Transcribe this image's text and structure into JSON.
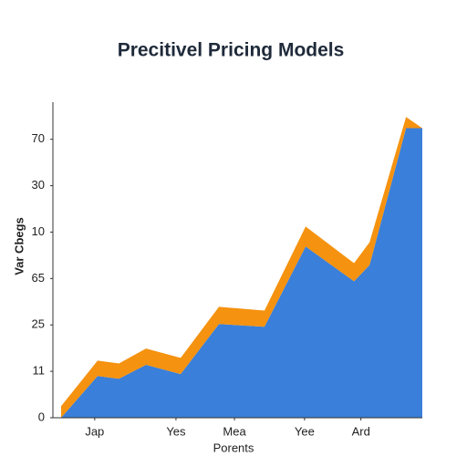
{
  "chart_data": {
    "type": "area",
    "stacked": true,
    "title": "Precitivel Pricing Models",
    "ylabel": "Var Cbegs",
    "xlabel": "Porents",
    "x": [
      0,
      10.1,
      16.0,
      23.5,
      33.1,
      43.7,
      56.3,
      67.7,
      81.1,
      85.4,
      95.5,
      100
    ],
    "series": [
      {
        "color": "#3a7fd9",
        "values": [
          0,
          0.9,
          0.84,
          1.14,
          0.94,
          2.02,
          1.96,
          3.69,
          2.94,
          3.29,
          6.24,
          6.24
        ]
      },
      {
        "color": "#f5920f",
        "values": [
          0.25,
          0.33,
          0.33,
          0.35,
          0.35,
          0.37,
          0.35,
          0.43,
          0.39,
          0.49,
          0.24,
          0
        ]
      }
    ],
    "xlim": [
      0,
      100
    ],
    "xticks": [
      {
        "value": 9.3,
        "label": "Jap"
      },
      {
        "value": 31.8,
        "label": "Yes"
      },
      {
        "value": 48,
        "label": "Mea"
      },
      {
        "value": 67.4,
        "label": "Yee"
      },
      {
        "value": 83,
        "label": "Ard"
      }
    ],
    "ylim": [
      0,
      6.8
    ],
    "yticks": [
      {
        "value": 0,
        "label": "0"
      },
      {
        "value": 1,
        "label": "11"
      },
      {
        "value": 2,
        "label": "25"
      },
      {
        "value": 3,
        "label": "65"
      },
      {
        "value": 4,
        "label": "10"
      },
      {
        "value": 5,
        "label": "30"
      },
      {
        "value": 6,
        "label": "70"
      }
    ]
  }
}
